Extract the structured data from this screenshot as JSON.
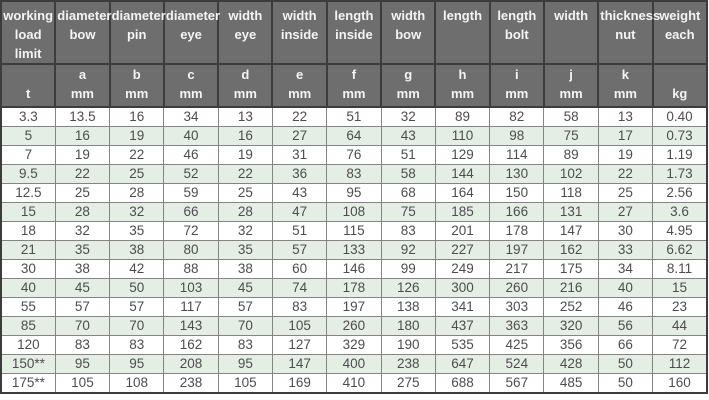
{
  "colors": {
    "header_bg": "#6e6e6e",
    "header_text": "#f4f4f4",
    "row_alt_bg": "#e4eee5",
    "row_bg": "#ffffff",
    "cell_text": "#4d4d4d",
    "grid_line": "#848484",
    "dark_line": "#3c3c3c"
  },
  "table": {
    "columns": [
      {
        "label": "working\nload\nlimit",
        "sub": "t"
      },
      {
        "label": "diameter\nbow",
        "sub": "a\nmm"
      },
      {
        "label": "diameter\npin",
        "sub": "b\nmm"
      },
      {
        "label": "diameter\neye",
        "sub": "c\nmm"
      },
      {
        "label": "width\neye",
        "sub": "d\nmm"
      },
      {
        "label": "width\ninside",
        "sub": "e\nmm"
      },
      {
        "label": "length\ninside",
        "sub": "f\nmm"
      },
      {
        "label": "width\nbow",
        "sub": "g\nmm"
      },
      {
        "label": "length",
        "sub": "h\nmm"
      },
      {
        "label": "length\nbolt",
        "sub": "i\nmm"
      },
      {
        "label": "width",
        "sub": "j\nmm"
      },
      {
        "label": "thickness\nnut",
        "sub": "k\nmm"
      },
      {
        "label": "weight\neach",
        "sub": "kg"
      }
    ],
    "rows": [
      [
        "3.3",
        "13.5",
        "16",
        "34",
        "13",
        "22",
        "51",
        "32",
        "89",
        "82",
        "58",
        "13",
        "0.40"
      ],
      [
        "5",
        "16",
        "19",
        "40",
        "16",
        "27",
        "64",
        "43",
        "110",
        "98",
        "75",
        "17",
        "0.73"
      ],
      [
        "7",
        "19",
        "22",
        "46",
        "19",
        "31",
        "76",
        "51",
        "129",
        "114",
        "89",
        "19",
        "1.19"
      ],
      [
        "9.5",
        "22",
        "25",
        "52",
        "22",
        "36",
        "83",
        "58",
        "144",
        "130",
        "102",
        "22",
        "1.73"
      ],
      [
        "12.5",
        "25",
        "28",
        "59",
        "25",
        "43",
        "95",
        "68",
        "164",
        "150",
        "118",
        "25",
        "2.56"
      ],
      [
        "15",
        "28",
        "32",
        "66",
        "28",
        "47",
        "108",
        "75",
        "185",
        "166",
        "131",
        "27",
        "3.6"
      ],
      [
        "18",
        "32",
        "35",
        "72",
        "32",
        "51",
        "115",
        "83",
        "201",
        "178",
        "147",
        "30",
        "4.95"
      ],
      [
        "21",
        "35",
        "38",
        "80",
        "35",
        "57",
        "133",
        "92",
        "227",
        "197",
        "162",
        "33",
        "6.62"
      ],
      [
        "30",
        "38",
        "42",
        "88",
        "38",
        "60",
        "146",
        "99",
        "249",
        "217",
        "175",
        "34",
        "8.11"
      ],
      [
        "40",
        "45",
        "50",
        "103",
        "45",
        "74",
        "178",
        "126",
        "300",
        "260",
        "216",
        "40",
        "15"
      ],
      [
        "55",
        "57",
        "57",
        "117",
        "57",
        "83",
        "197",
        "138",
        "341",
        "303",
        "252",
        "46",
        "23"
      ],
      [
        "85",
        "70",
        "70",
        "143",
        "70",
        "105",
        "260",
        "180",
        "437",
        "363",
        "320",
        "56",
        "44"
      ],
      [
        "120",
        "83",
        "83",
        "162",
        "83",
        "127",
        "329",
        "190",
        "535",
        "425",
        "356",
        "66",
        "72"
      ],
      [
        "150**",
        "95",
        "95",
        "208",
        "95",
        "147",
        "400",
        "238",
        "647",
        "524",
        "428",
        "50",
        "112"
      ],
      [
        "175**",
        "105",
        "108",
        "238",
        "105",
        "169",
        "410",
        "275",
        "688",
        "567",
        "485",
        "50",
        "160"
      ]
    ]
  }
}
